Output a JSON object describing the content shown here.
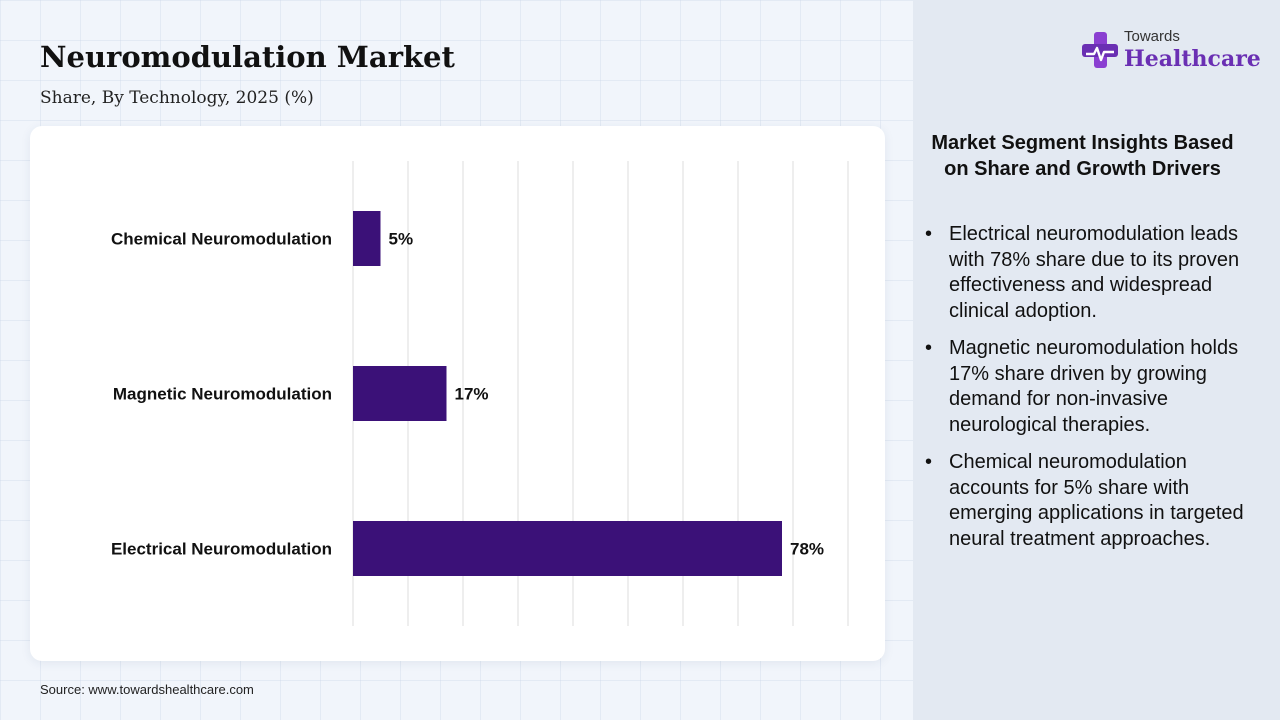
{
  "chart_data": {
    "type": "bar",
    "orientation": "horizontal",
    "title": "Neuromodulation Market",
    "subtitle": "Share, By Technology, 2025 (%)",
    "categories": [
      "Chemical Neuromodulation",
      "Magnetic Neuromodulation",
      "Electrical Neuromodulation"
    ],
    "values": [
      5,
      17,
      78
    ],
    "value_labels": [
      "5%",
      "17%",
      "78%"
    ],
    "xlim": [
      0,
      90
    ],
    "xlabel": "",
    "ylabel": "",
    "grid": true,
    "bar_color": "#3b1178"
  },
  "source": "Source: www.towardshealthcare.com",
  "logo": {
    "top": "Towards",
    "main": "Healthcare",
    "icon": "medical-cross-icon",
    "accent": "#6a2fb3"
  },
  "insights": {
    "title": "Market Segment Insights Based on Share and Growth Drivers",
    "items": [
      "Electrical neuromodulation leads with 78% share due to its proven effectiveness and widespread clinical adoption.",
      "Magnetic neuromodulation holds 17% share driven by growing demand for non-invasive neurological therapies.",
      "Chemical neuromodulation accounts for 5% share with emerging applications in targeted neural treatment approaches."
    ]
  }
}
